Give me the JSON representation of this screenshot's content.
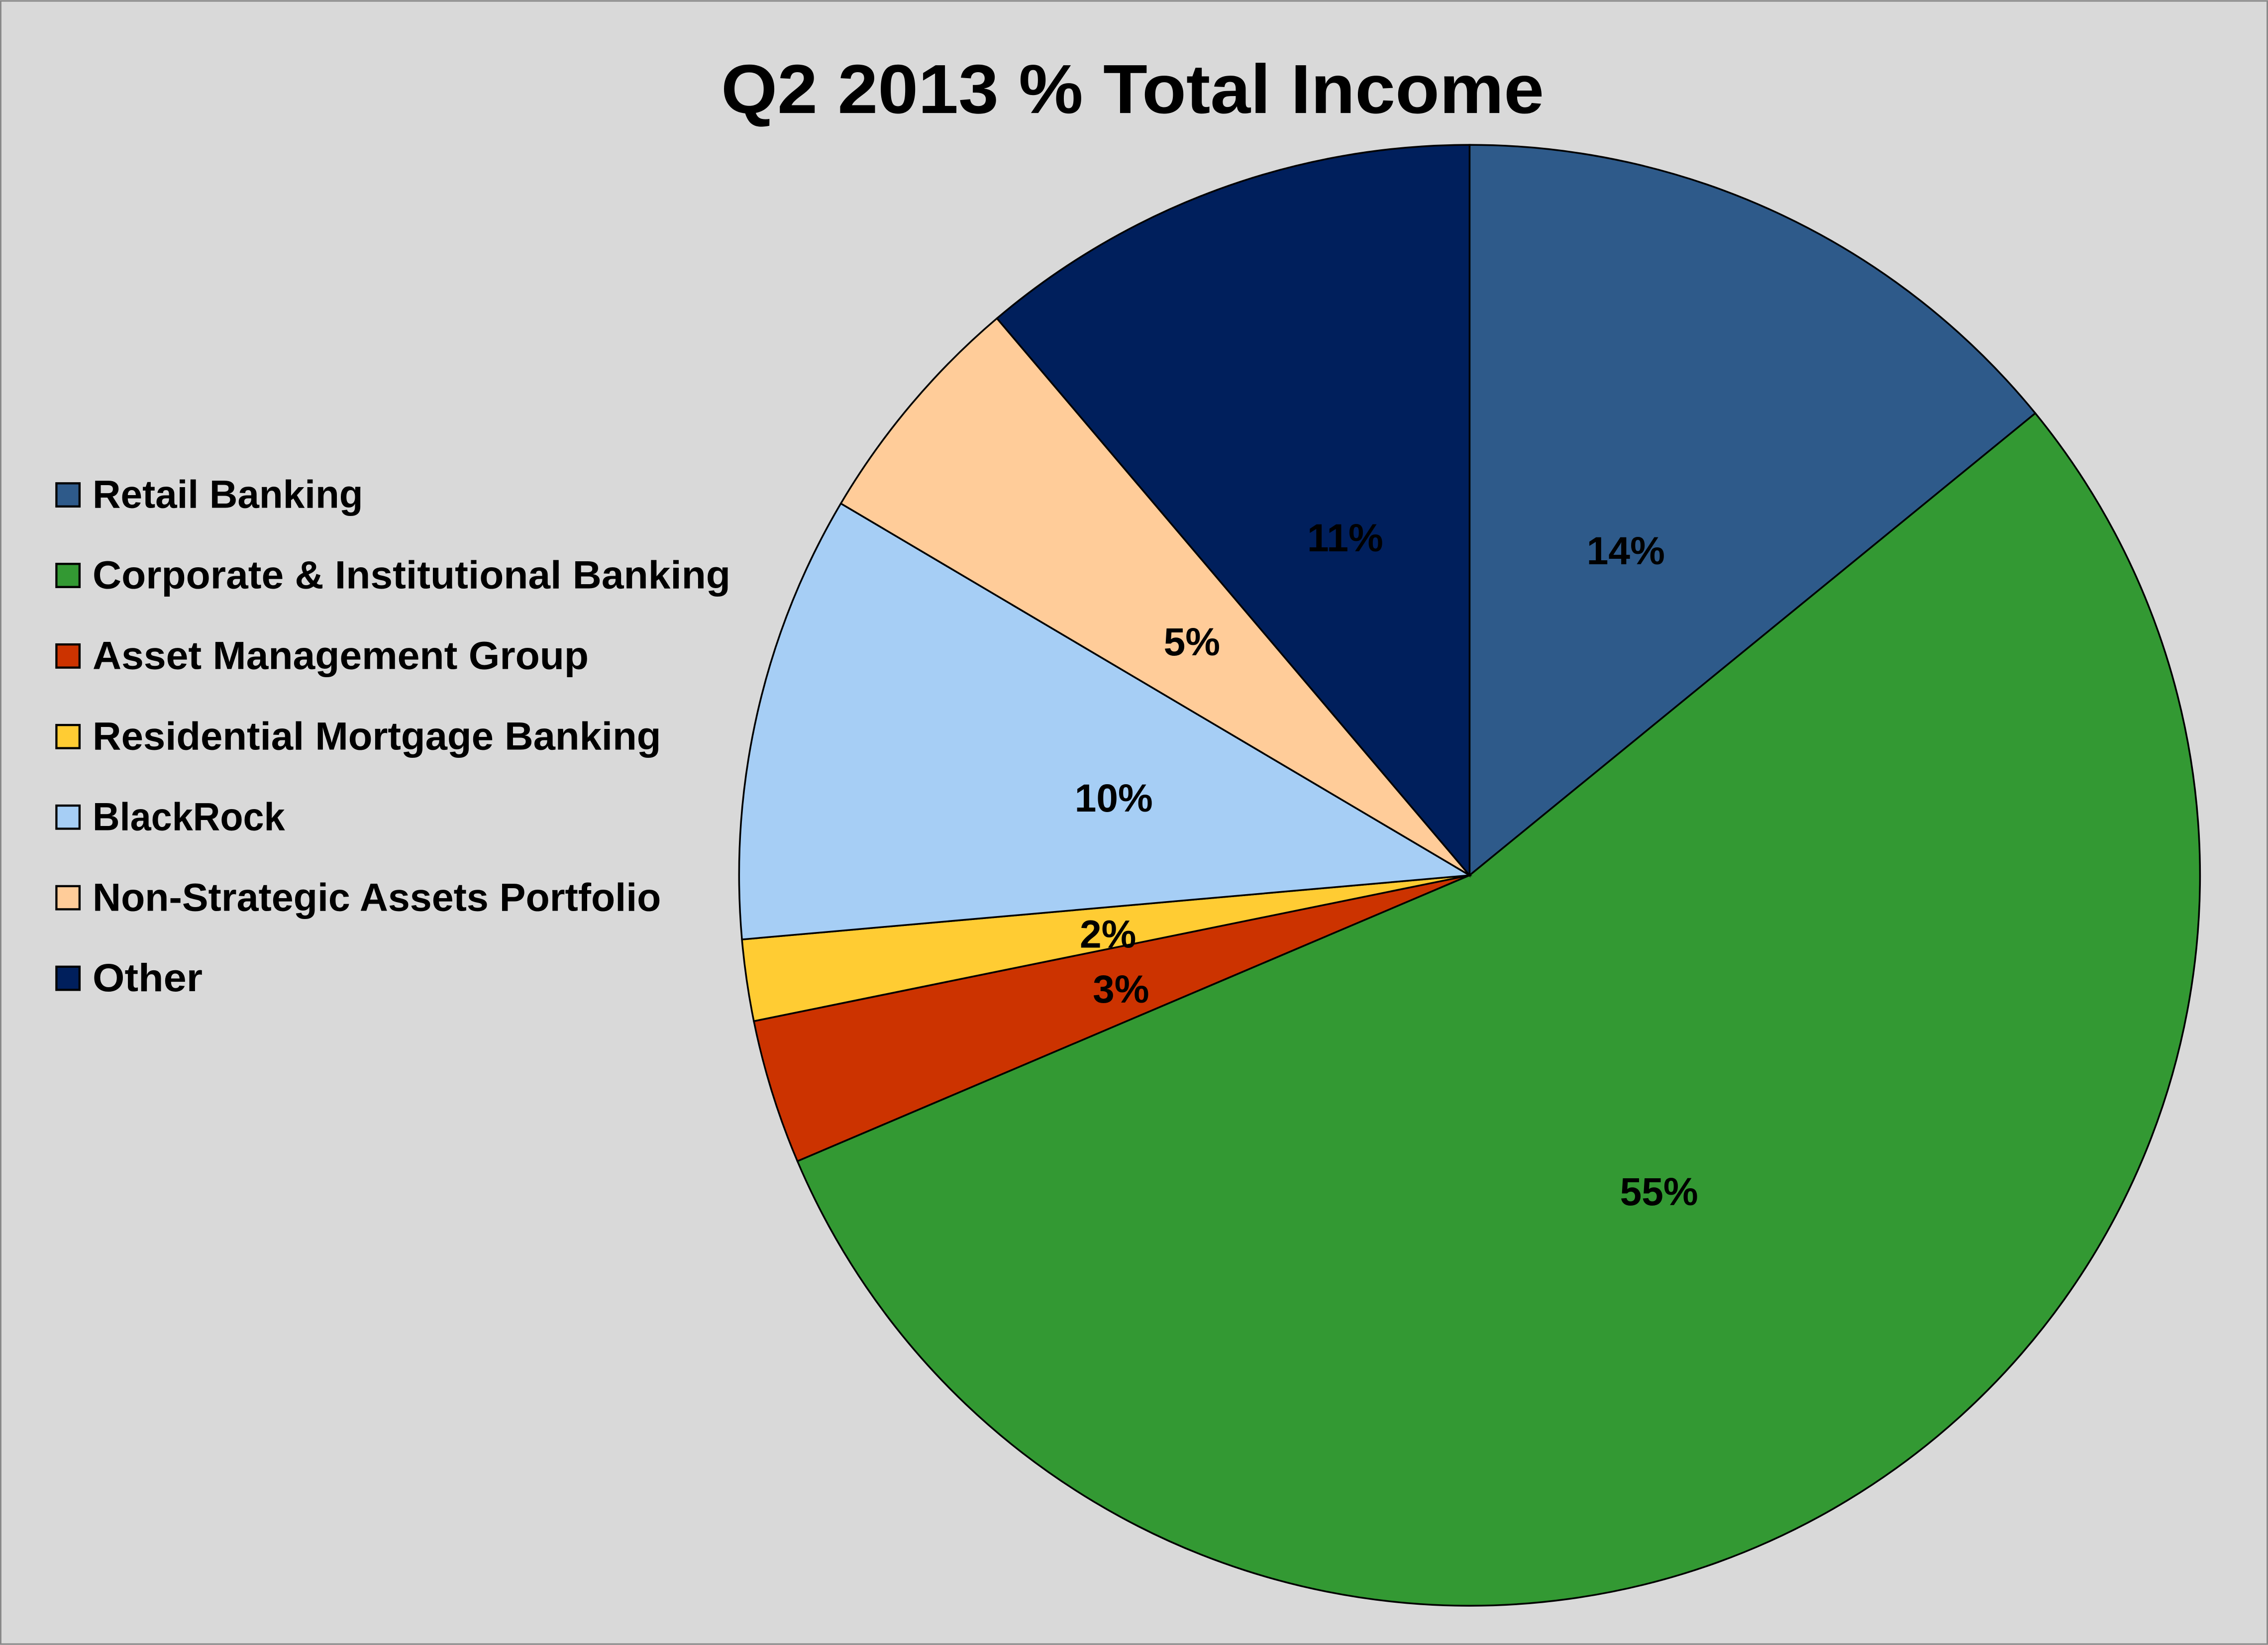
{
  "chart_data": {
    "type": "pie",
    "title": "Q2 2013 % Total Income",
    "legend_position": "left",
    "start_angle_deg": 0,
    "direction": "clockwise",
    "slices": [
      {
        "label": "Retail Banking",
        "value": 14.1,
        "data_label": "14%",
        "color": "#2e5a8a"
      },
      {
        "label": "Corporate & Institutional Banking",
        "value": 54.5,
        "data_label": "55%",
        "color": "#339933"
      },
      {
        "label": "Asset Management Group",
        "value": 3.2,
        "data_label": "3%",
        "color": "#cc3300"
      },
      {
        "label": "Residential Mortgage Banking",
        "value": 1.8,
        "data_label": "2%",
        "color": "#ffcc33"
      },
      {
        "label": "BlackRock",
        "value": 9.9,
        "data_label": "10%",
        "color": "#a6cef5"
      },
      {
        "label": "Non-Strategic Assets Portfolio",
        "value": 5.3,
        "data_label": "5%",
        "color": "#ffcc99"
      },
      {
        "label": "Other",
        "value": 11.2,
        "data_label": "11%",
        "color": "#001f5c"
      }
    ]
  }
}
